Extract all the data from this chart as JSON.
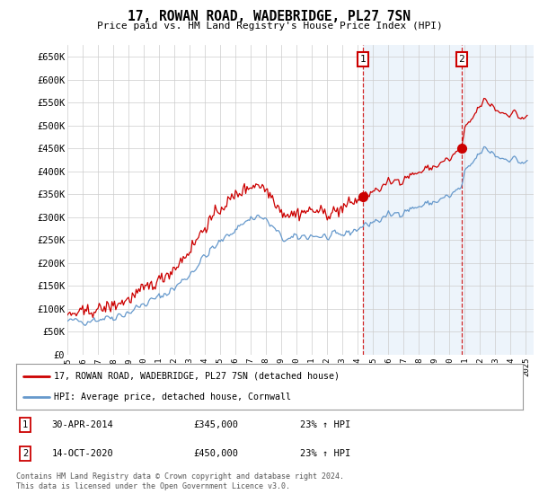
{
  "title": "17, ROWAN ROAD, WADEBRIDGE, PL27 7SN",
  "subtitle": "Price paid vs. HM Land Registry's House Price Index (HPI)",
  "xlim": [
    1995.0,
    2025.5
  ],
  "ylim": [
    0,
    675000
  ],
  "yticks": [
    0,
    50000,
    100000,
    150000,
    200000,
    250000,
    300000,
    350000,
    400000,
    450000,
    500000,
    550000,
    600000,
    650000
  ],
  "ytick_labels": [
    "£0",
    "£50K",
    "£100K",
    "£150K",
    "£200K",
    "£250K",
    "£300K",
    "£350K",
    "£400K",
    "£450K",
    "£500K",
    "£550K",
    "£600K",
    "£650K"
  ],
  "xticks": [
    1995,
    1996,
    1997,
    1998,
    1999,
    2000,
    2001,
    2002,
    2003,
    2004,
    2005,
    2006,
    2007,
    2008,
    2009,
    2010,
    2011,
    2012,
    2013,
    2014,
    2015,
    2016,
    2017,
    2018,
    2019,
    2020,
    2021,
    2022,
    2023,
    2024,
    2025
  ],
  "property_color": "#cc0000",
  "hpi_color": "#6699cc",
  "shaded_color": "#cce0f5",
  "sale1_x": 2014.33,
  "sale1_y": 345000,
  "sale1_label": "1",
  "sale1_date": "30-APR-2014",
  "sale1_price": "£345,000",
  "sale1_hpi": "23% ↑ HPI",
  "sale2_x": 2020.79,
  "sale2_y": 450000,
  "sale2_label": "2",
  "sale2_date": "14-OCT-2020",
  "sale2_price": "£450,000",
  "sale2_hpi": "23% ↑ HPI",
  "legend_line1": "17, ROWAN ROAD, WADEBRIDGE, PL27 7SN (detached house)",
  "legend_line2": "HPI: Average price, detached house, Cornwall",
  "footnote": "Contains HM Land Registry data © Crown copyright and database right 2024.\nThis data is licensed under the Open Government Licence v3.0.",
  "bg_color": "#ffffff",
  "grid_color": "#cccccc"
}
